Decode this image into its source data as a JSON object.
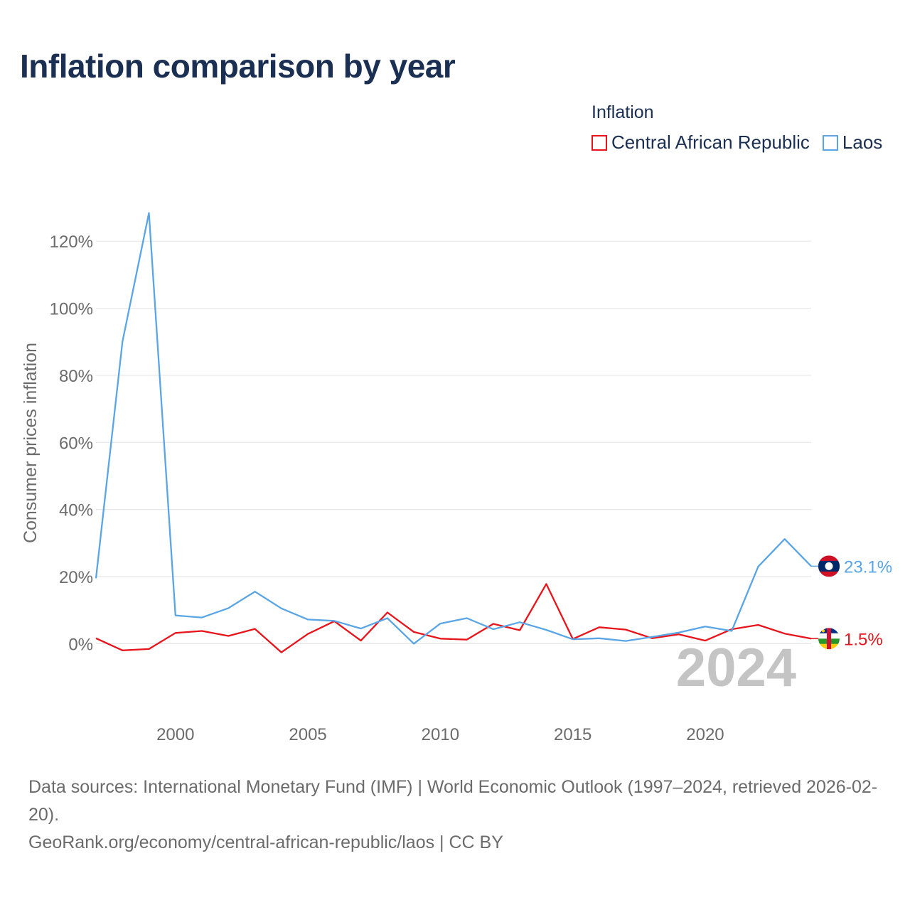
{
  "title": "Inflation comparison by year",
  "legend": {
    "title": "Inflation",
    "items": [
      {
        "label": "Central African Republic",
        "color": "#e8141b"
      },
      {
        "label": "Laos",
        "color": "#5aa5e6"
      }
    ]
  },
  "chart_data": {
    "type": "line",
    "title": "Inflation comparison by year",
    "ylabel": "Consumer prices inflation",
    "xlabel": "",
    "x": [
      1997,
      1998,
      1999,
      2000,
      2001,
      2002,
      2003,
      2004,
      2005,
      2006,
      2007,
      2008,
      2009,
      2010,
      2011,
      2012,
      2013,
      2014,
      2015,
      2016,
      2017,
      2018,
      2019,
      2020,
      2021,
      2022,
      2023,
      2024
    ],
    "xlim": [
      1997,
      2024
    ],
    "ylim": [
      -12,
      130
    ],
    "xticks": [
      2000,
      2005,
      2010,
      2015,
      2020
    ],
    "xtick_labels": [
      "2000",
      "2005",
      "2010",
      "2015",
      "2020"
    ],
    "yticks": [
      0,
      20,
      40,
      60,
      80,
      100,
      120
    ],
    "ytick_labels": [
      "0%",
      "20%",
      "40%",
      "60%",
      "80%",
      "100%",
      "120%"
    ],
    "grid": true,
    "series": [
      {
        "name": "Central African Republic",
        "color": "#e8141b",
        "values": [
          1.6,
          -2.0,
          -1.6,
          3.2,
          3.8,
          2.3,
          4.4,
          -2.6,
          2.9,
          6.7,
          0.9,
          9.3,
          3.5,
          1.5,
          1.2,
          5.9,
          4.0,
          17.8,
          1.4,
          4.9,
          4.2,
          1.6,
          2.8,
          0.9,
          4.3,
          5.6,
          3.0,
          1.5
        ],
        "end_label": "1.5%"
      },
      {
        "name": "Laos",
        "color": "#5aa5e6",
        "values": [
          19.5,
          90.1,
          128.4,
          8.4,
          7.8,
          10.6,
          15.5,
          10.5,
          7.2,
          6.8,
          4.5,
          7.6,
          0.0,
          6.0,
          7.6,
          4.3,
          6.4,
          4.1,
          1.3,
          1.6,
          0.8,
          2.0,
          3.3,
          5.1,
          3.8,
          23.0,
          31.2,
          23.1
        ],
        "end_label": "23.1%"
      }
    ],
    "year_watermark": "2024"
  },
  "footer": {
    "sources": "Data sources: International Monetary Fund (IMF) | World Economic Outlook (1997–2024, retrieved 2026-02-20).",
    "credit": "GeoRank.org/economy/central-african-republic/laos | CC BY"
  }
}
